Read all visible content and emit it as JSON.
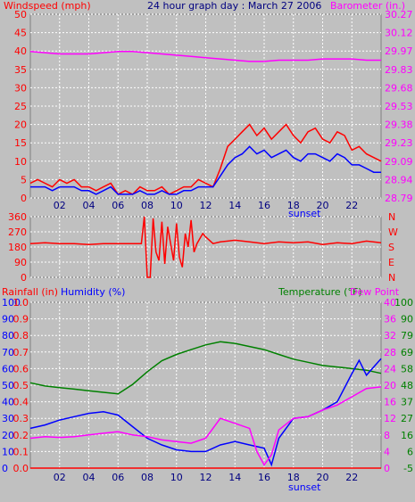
{
  "header": {
    "left": "Windspeed (mph)",
    "center": "24 hour graph day : March 27 2006",
    "right": "Barometer (in.)"
  },
  "colors": {
    "background": "#c0c0c0",
    "plot_bg": "#c0c0c0",
    "grid": "#ffffff",
    "red": "#ff0000",
    "blue": "#0000ff",
    "magenta": "#ff00ff",
    "green": "#008000",
    "text_dark": "#000080"
  },
  "x_axis": {
    "ticks": [
      "02",
      "04",
      "06",
      "08",
      "10",
      "12",
      "14",
      "16",
      "18",
      "20",
      "22"
    ],
    "tick_hours": [
      2,
      4,
      6,
      8,
      10,
      12,
      14,
      16,
      18,
      20,
      22
    ],
    "sunset_label": "sunset",
    "sunset_hour": 18
  },
  "chart_data": [
    {
      "type": "line",
      "panel": "wind",
      "xrange": [
        0,
        24
      ],
      "left_axis": {
        "label": "Windspeed (mph)",
        "ticks": [
          "0",
          "5",
          "10",
          "15",
          "20",
          "25",
          "30",
          "35",
          "40",
          "45",
          "50"
        ],
        "range": [
          0,
          50
        ]
      },
      "right_axis": {
        "label": "Barometer (in.)",
        "ticks": [
          "28.79",
          "28.94",
          "29.09",
          "29.23",
          "29.38",
          "29.53",
          "29.68",
          "29.83",
          "29.97",
          "30.12",
          "30.27"
        ],
        "range": [
          28.79,
          30.27
        ]
      },
      "series": [
        {
          "color": "#ff00ff",
          "axis": "right",
          "x": [
            0,
            1,
            2,
            3,
            4,
            5,
            6,
            7,
            8,
            9,
            10,
            11,
            12,
            13,
            14,
            15,
            16,
            17,
            18,
            19,
            20,
            21,
            22,
            23,
            24
          ],
          "y": [
            29.97,
            29.96,
            29.95,
            29.95,
            29.95,
            29.96,
            29.97,
            29.97,
            29.96,
            29.95,
            29.94,
            29.93,
            29.92,
            29.91,
            29.9,
            29.89,
            29.89,
            29.9,
            29.9,
            29.9,
            29.91,
            29.91,
            29.91,
            29.9,
            29.9
          ]
        },
        {
          "color": "#ff0000",
          "axis": "left",
          "x": [
            0,
            0.5,
            1,
            1.5,
            2,
            2.5,
            3,
            3.5,
            4,
            4.5,
            5,
            5.5,
            6,
            6.5,
            7,
            7.5,
            8,
            8.5,
            9,
            9.5,
            10,
            10.5,
            11,
            11.5,
            12,
            12.5,
            13,
            13.5,
            14,
            14.5,
            15,
            15.5,
            16,
            16.5,
            17,
            17.5,
            18,
            18.5,
            19,
            19.5,
            20,
            20.5,
            21,
            21.5,
            22,
            22.5,
            23,
            23.5,
            24
          ],
          "y": [
            4,
            5,
            4,
            3,
            5,
            4,
            5,
            3,
            3,
            2,
            3,
            4,
            1,
            2,
            1,
            3,
            2,
            2,
            3,
            1,
            2,
            3,
            3,
            5,
            4,
            3,
            8,
            14,
            16,
            18,
            20,
            17,
            19,
            16,
            18,
            20,
            17,
            15,
            18,
            19,
            16,
            15,
            18,
            17,
            13,
            14,
            12,
            11,
            10
          ]
        },
        {
          "color": "#0000ff",
          "axis": "left",
          "x": [
            0,
            0.5,
            1,
            1.5,
            2,
            2.5,
            3,
            3.5,
            4,
            4.5,
            5,
            5.5,
            6,
            6.5,
            7,
            7.5,
            8,
            8.5,
            9,
            9.5,
            10,
            10.5,
            11,
            11.5,
            12,
            12.5,
            13,
            13.5,
            14,
            14.5,
            15,
            15.5,
            16,
            16.5,
            17,
            17.5,
            18,
            18.5,
            19,
            19.5,
            20,
            20.5,
            21,
            21.5,
            22,
            22.5,
            23,
            23.5,
            24
          ],
          "y": [
            3,
            3,
            3,
            2,
            3,
            3,
            3,
            2,
            2,
            1,
            2,
            3,
            1,
            1,
            1,
            2,
            1,
            1,
            2,
            1,
            1,
            2,
            2,
            3,
            3,
            3,
            6,
            9,
            11,
            12,
            14,
            12,
            13,
            11,
            12,
            13,
            11,
            10,
            12,
            12,
            11,
            10,
            12,
            11,
            9,
            9,
            8,
            7,
            7
          ]
        }
      ]
    },
    {
      "type": "line",
      "panel": "direction",
      "xrange": [
        0,
        24
      ],
      "left_axis": {
        "label": "",
        "ticks": [
          "0",
          "90",
          "180",
          "270",
          "360"
        ],
        "range": [
          0,
          360
        ]
      },
      "right_axis": {
        "label": "",
        "ticks": [
          "N",
          "E",
          "S",
          "W",
          "N"
        ],
        "range": [
          0,
          360
        ]
      },
      "series": [
        {
          "color": "#ff0000",
          "axis": "left",
          "x": [
            0,
            1,
            2,
            3,
            4,
            5,
            6,
            7,
            7.6,
            7.8,
            8,
            8.2,
            8.4,
            8.6,
            8.8,
            9,
            9.2,
            9.4,
            9.6,
            9.8,
            10,
            10.2,
            10.4,
            10.6,
            10.8,
            11,
            11.2,
            11.4,
            11.6,
            11.8,
            12,
            12.5,
            13,
            14,
            15,
            16,
            17,
            18,
            19,
            20,
            21,
            22,
            23,
            24
          ],
          "y": [
            200,
            205,
            200,
            200,
            195,
            200,
            200,
            200,
            200,
            360,
            0,
            0,
            350,
            150,
            100,
            330,
            80,
            300,
            200,
            100,
            320,
            120,
            60,
            260,
            180,
            340,
            150,
            200,
            230,
            260,
            240,
            200,
            210,
            220,
            210,
            200,
            210,
            205,
            210,
            195,
            205,
            200,
            215,
            205
          ]
        }
      ]
    },
    {
      "type": "line",
      "panel": "weather",
      "xrange": [
        0,
        24
      ],
      "left_axis_rain": {
        "label": "Rainfall (in)",
        "ticks": [
          "0.0",
          "0.1",
          "0.2",
          "0.3",
          "0.4",
          "0.5",
          "0.6",
          "0.7",
          "0.8",
          "0.9",
          "1.0"
        ],
        "range": [
          0,
          1
        ]
      },
      "left_axis_humidity": {
        "label": "Humidity (%)",
        "ticks": [
          "0",
          "10",
          "20",
          "30",
          "40",
          "50",
          "60",
          "70",
          "80",
          "90",
          "100"
        ],
        "range": [
          0,
          100
        ]
      },
      "right_axis_temp": {
        "label": "Temperature (°F)",
        "ticks": [
          "-5",
          "6",
          "16",
          "27",
          "37",
          "48",
          "58",
          "69",
          "79",
          "90",
          "100"
        ],
        "range": [
          -5,
          100
        ]
      },
      "right_axis_dew": {
        "label": "Dew Point",
        "ticks": [
          "0",
          "4",
          "8",
          "12",
          "16",
          "20",
          "24",
          "28",
          "32",
          "36",
          "40"
        ],
        "range": [
          0,
          40
        ]
      },
      "series": [
        {
          "name": "Temperature (°F)",
          "color": "#008000",
          "axis": "temp",
          "x": [
            0,
            1,
            2,
            3,
            4,
            5,
            6,
            7,
            8,
            9,
            10,
            11,
            12,
            13,
            14,
            15,
            16,
            17,
            18,
            19,
            20,
            21,
            22,
            23,
            24
          ],
          "y": [
            49,
            47,
            46,
            45,
            44,
            43,
            42,
            48,
            56,
            63,
            67,
            70,
            73,
            75,
            74,
            72,
            70,
            67,
            64,
            62,
            60,
            59,
            58,
            57,
            55
          ]
        },
        {
          "name": "Humidity (%)",
          "color": "#0000ff",
          "axis": "humidity",
          "x": [
            0,
            1,
            2,
            3,
            4,
            5,
            6,
            7,
            8,
            9,
            10,
            11,
            12,
            13,
            14,
            15,
            16,
            16.5,
            17,
            18,
            19,
            20,
            21,
            22,
            22.5,
            23,
            24
          ],
          "y": [
            24,
            26,
            29,
            31,
            33,
            34,
            32,
            25,
            18,
            14,
            11,
            10,
            10,
            14,
            16,
            14,
            12,
            2,
            18,
            30,
            31,
            35,
            40,
            57,
            65,
            56,
            66
          ]
        },
        {
          "name": "Dew Point",
          "color": "#ff00ff",
          "axis": "dew",
          "x": [
            0,
            1,
            2,
            3,
            4,
            5,
            6,
            7,
            8,
            9,
            10,
            11,
            12,
            13,
            14,
            15,
            15.5,
            16,
            16.5,
            17,
            18,
            19,
            20,
            21,
            22,
            23,
            24
          ],
          "y": [
            7.2,
            7.6,
            7.4,
            7.6,
            8.0,
            8.4,
            8.8,
            8.0,
            7.6,
            6.8,
            6.4,
            6.0,
            7.2,
            12.0,
            10.8,
            9.6,
            4.0,
            0.8,
            3.2,
            9.2,
            12.0,
            12.4,
            14.0,
            15.2,
            17.2,
            19.2,
            19.6
          ]
        },
        {
          "name": "Rainfall (in)",
          "color": "#ff0000",
          "axis": "rain",
          "x": [
            0,
            24
          ],
          "y": [
            0,
            0
          ]
        }
      ]
    }
  ]
}
